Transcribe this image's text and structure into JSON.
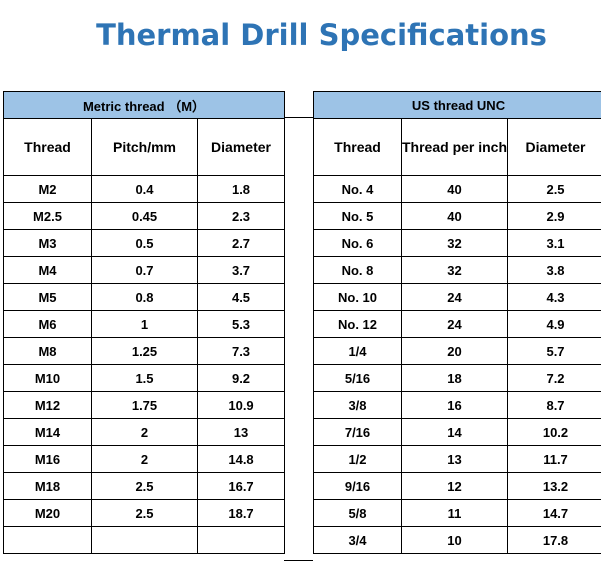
{
  "title": "Thermal Drill Specifications",
  "metric": {
    "band": "Metric thread （M）",
    "headers": [
      "Thread",
      "Pitch/mm",
      "Diameter"
    ],
    "rows": [
      [
        "M2",
        "0.4",
        "1.8"
      ],
      [
        "M2.5",
        "0.45",
        "2.3"
      ],
      [
        "M3",
        "0.5",
        "2.7"
      ],
      [
        "M4",
        "0.7",
        "3.7"
      ],
      [
        "M5",
        "0.8",
        "4.5"
      ],
      [
        "M6",
        "1",
        "5.3"
      ],
      [
        "M8",
        "1.25",
        "7.3"
      ],
      [
        "M10",
        "1.5",
        "9.2"
      ],
      [
        "M12",
        "1.75",
        "10.9"
      ],
      [
        "M14",
        "2",
        "13"
      ],
      [
        "M16",
        "2",
        "14.8"
      ],
      [
        "M18",
        "2.5",
        "16.7"
      ],
      [
        "M20",
        "2.5",
        "18.7"
      ],
      [
        "",
        "",
        ""
      ]
    ]
  },
  "us": {
    "band": "US thread UNC",
    "headers": [
      "Thread",
      "Thread per inch",
      "Diameter"
    ],
    "rows": [
      [
        "No. 4",
        "40",
        "2.5"
      ],
      [
        "No. 5",
        "40",
        "2.9"
      ],
      [
        "No. 6",
        "32",
        "3.1"
      ],
      [
        "No. 8",
        "32",
        "3.8"
      ],
      [
        "No. 10",
        "24",
        "4.3"
      ],
      [
        "No. 12",
        "24",
        "4.9"
      ],
      [
        "1/4",
        "20",
        "5.7"
      ],
      [
        "5/16",
        "18",
        "7.2"
      ],
      [
        "3/8",
        "16",
        "8.7"
      ],
      [
        "7/16",
        "14",
        "10.2"
      ],
      [
        "1/2",
        "13",
        "11.7"
      ],
      [
        "9/16",
        "12",
        "13.2"
      ],
      [
        "5/8",
        "11",
        "14.7"
      ],
      [
        "3/4",
        "10",
        "17.8"
      ]
    ]
  }
}
